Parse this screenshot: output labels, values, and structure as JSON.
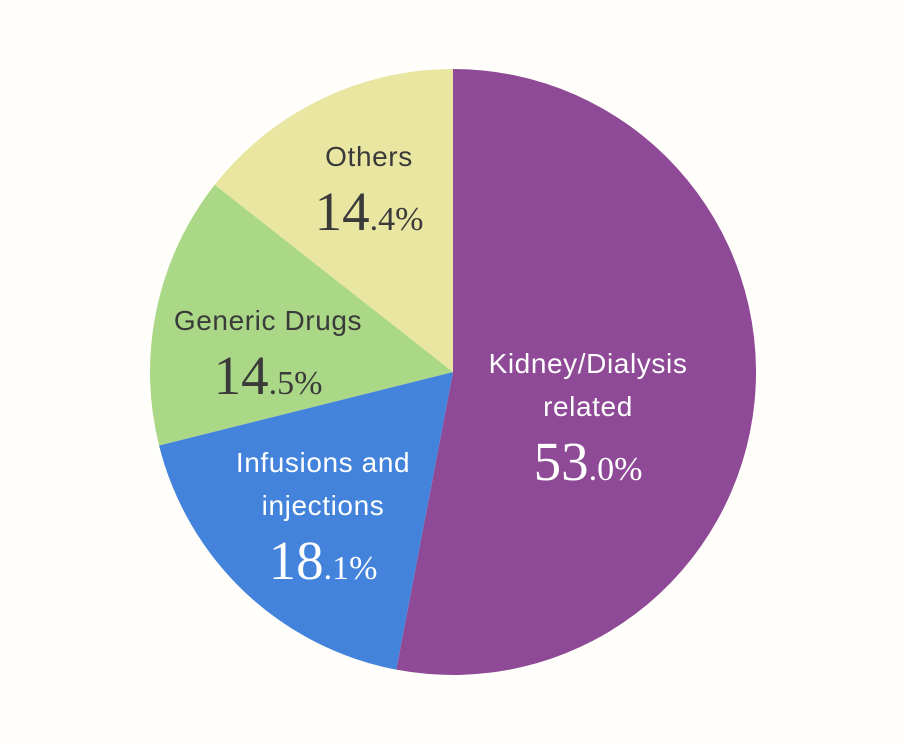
{
  "chart_data": {
    "type": "pie",
    "title": "",
    "unit": "%",
    "direction": "clockwise",
    "start_angle_deg": 0,
    "background": "#fffefb",
    "legend": "none",
    "labels_inside_slices": true,
    "slices": [
      {
        "label": "Kidney/Dialysis related",
        "label_lines": [
          "Kidney/Dialysis",
          "related"
        ],
        "value": 53.0,
        "value_int": "53",
        "value_frac": ".0%",
        "color": "#8e4a96",
        "text_color": "#ffffff"
      },
      {
        "label": "Infusions and injections",
        "label_lines": [
          "Infusions and",
          "injections"
        ],
        "value": 18.1,
        "value_int": "18",
        "value_frac": ".1%",
        "color": "#4383db",
        "text_color": "#ffffff"
      },
      {
        "label": "Generic Drugs",
        "label_lines": [
          "Generic Drugs"
        ],
        "value": 14.5,
        "value_int": "14",
        "value_frac": ".5%",
        "color": "#aad886",
        "text_color": "#3a3a3a"
      },
      {
        "label": "Others",
        "label_lines": [
          "Others"
        ],
        "value": 14.4,
        "value_int": "14",
        "value_frac": ".4%",
        "color": "#e9e6a2",
        "text_color": "#3a3a3a"
      }
    ]
  }
}
